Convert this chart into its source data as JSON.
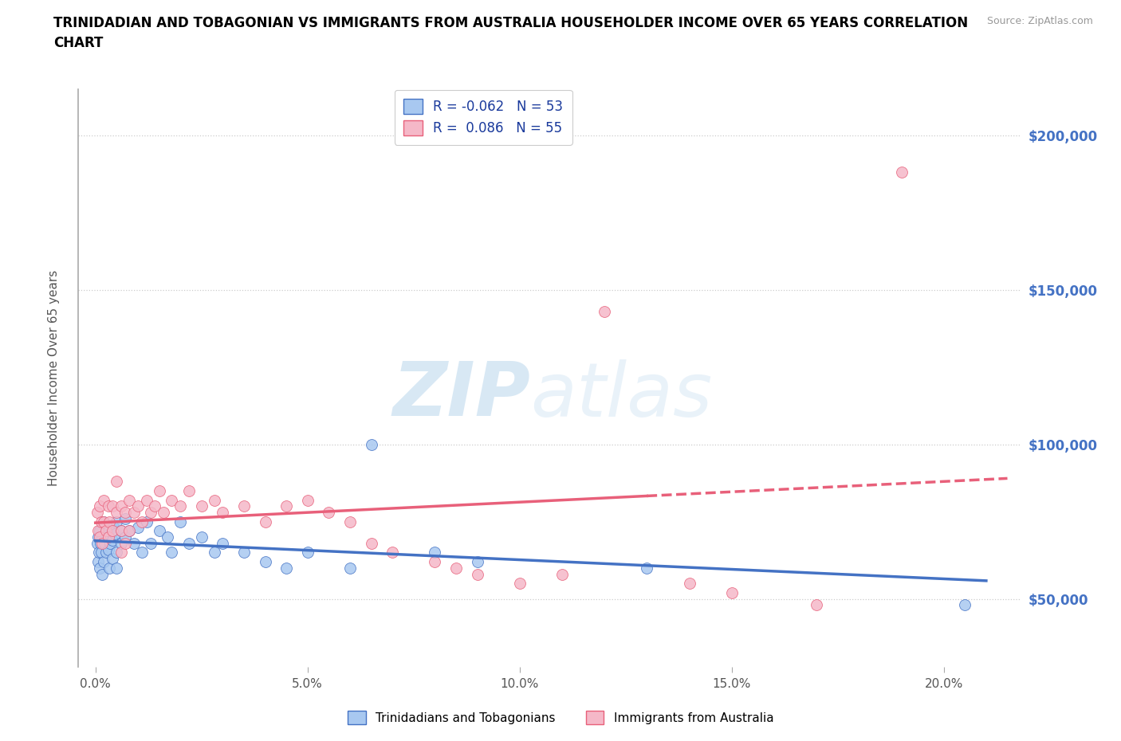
{
  "title_line1": "TRINIDADIAN AND TOBAGONIAN VS IMMIGRANTS FROM AUSTRALIA HOUSEHOLDER INCOME OVER 65 YEARS CORRELATION",
  "title_line2": "CHART",
  "source_text": "Source: ZipAtlas.com",
  "ylabel": "Householder Income Over 65 years",
  "xlabel_ticks": [
    "0.0%",
    "5.0%",
    "10.0%",
    "15.0%",
    "20.0%"
  ],
  "xlabel_vals": [
    0.0,
    0.05,
    0.1,
    0.15,
    0.2
  ],
  "ytick_labels": [
    "$50,000",
    "$100,000",
    "$150,000",
    "$200,000"
  ],
  "ytick_vals": [
    50000,
    100000,
    150000,
    200000
  ],
  "xlim": [
    -0.004,
    0.218
  ],
  "ylim": [
    28000,
    215000
  ],
  "R_blue": -0.062,
  "N_blue": 53,
  "R_pink": 0.086,
  "N_pink": 55,
  "blue_fill": "#a8c8f0",
  "pink_fill": "#f5b8c8",
  "blue_edge": "#4472c4",
  "pink_edge": "#e8607a",
  "watermark_zip": "ZIP",
  "watermark_atlas": "atlas",
  "legend_label_blue": "Trinidadians and Tobagonians",
  "legend_label_pink": "Immigrants from Australia",
  "blue_x": [
    0.0005,
    0.0006,
    0.0007,
    0.0008,
    0.001,
    0.001,
    0.0012,
    0.0013,
    0.0015,
    0.0015,
    0.002,
    0.002,
    0.0022,
    0.0025,
    0.003,
    0.003,
    0.0032,
    0.0035,
    0.004,
    0.004,
    0.004,
    0.0045,
    0.005,
    0.005,
    0.005,
    0.006,
    0.006,
    0.007,
    0.007,
    0.008,
    0.009,
    0.01,
    0.011,
    0.012,
    0.013,
    0.015,
    0.017,
    0.018,
    0.02,
    0.022,
    0.025,
    0.028,
    0.03,
    0.035,
    0.04,
    0.045,
    0.05,
    0.06,
    0.065,
    0.08,
    0.09,
    0.13,
    0.205
  ],
  "blue_y": [
    68000,
    62000,
    70000,
    65000,
    72000,
    60000,
    68000,
    65000,
    70000,
    58000,
    75000,
    62000,
    68000,
    65000,
    72000,
    66000,
    60000,
    68000,
    74000,
    63000,
    69000,
    71000,
    75000,
    65000,
    60000,
    72000,
    68000,
    76000,
    70000,
    72000,
    68000,
    73000,
    65000,
    75000,
    68000,
    72000,
    70000,
    65000,
    75000,
    68000,
    70000,
    65000,
    68000,
    65000,
    62000,
    60000,
    65000,
    60000,
    100000,
    65000,
    62000,
    60000,
    48000
  ],
  "pink_x": [
    0.0005,
    0.0006,
    0.001,
    0.001,
    0.0013,
    0.0015,
    0.002,
    0.002,
    0.0025,
    0.003,
    0.003,
    0.0032,
    0.004,
    0.004,
    0.005,
    0.005,
    0.006,
    0.006,
    0.006,
    0.007,
    0.007,
    0.008,
    0.008,
    0.009,
    0.01,
    0.011,
    0.012,
    0.013,
    0.014,
    0.015,
    0.016,
    0.018,
    0.02,
    0.022,
    0.025,
    0.028,
    0.03,
    0.035,
    0.04,
    0.045,
    0.05,
    0.055,
    0.06,
    0.065,
    0.07,
    0.08,
    0.085,
    0.09,
    0.1,
    0.11,
    0.12,
    0.14,
    0.15,
    0.17,
    0.19
  ],
  "pink_y": [
    78000,
    72000,
    80000,
    70000,
    75000,
    68000,
    82000,
    75000,
    72000,
    80000,
    70000,
    75000,
    80000,
    72000,
    88000,
    78000,
    80000,
    72000,
    65000,
    78000,
    68000,
    82000,
    72000,
    78000,
    80000,
    75000,
    82000,
    78000,
    80000,
    85000,
    78000,
    82000,
    80000,
    85000,
    80000,
    82000,
    78000,
    80000,
    75000,
    80000,
    82000,
    78000,
    75000,
    68000,
    65000,
    62000,
    60000,
    58000,
    55000,
    58000,
    143000,
    55000,
    52000,
    48000,
    188000
  ]
}
